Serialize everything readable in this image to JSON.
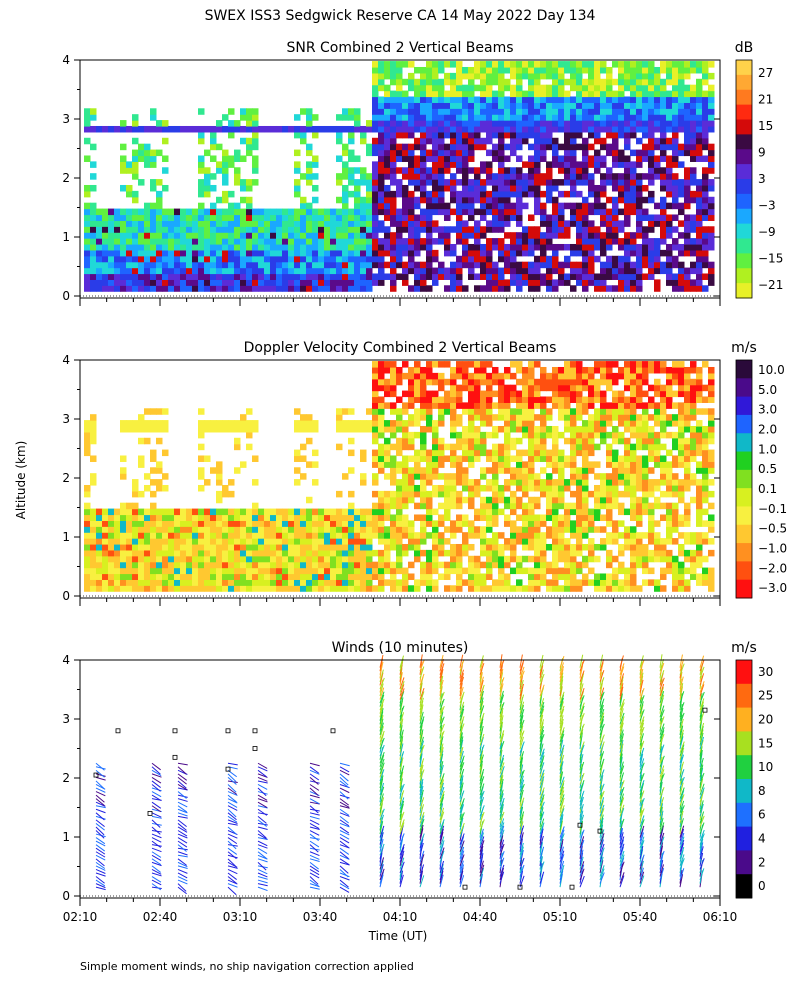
{
  "title": "SWEX ISS3 Sedgwick Reserve CA  14 May 2022 Day 134",
  "footnote": "Simple moment winds, no ship navigation correction applied",
  "ylabel": "Altitude (km)",
  "xlabel": "Time (UT)",
  "x_ticks": [
    "02:10",
    "02:40",
    "03:10",
    "03:40",
    "04:10",
    "04:40",
    "05:10",
    "05:40",
    "06:10"
  ],
  "y_ticks": [
    "0",
    "1",
    "2",
    "3",
    "4"
  ],
  "chart_data": [
    {
      "type": "heatmap",
      "title": "SNR Combined 2 Vertical Beams",
      "ylim": [
        0,
        4
      ],
      "x_range": [
        "02:10",
        "06:10"
      ],
      "colorbar": {
        "unit": "dB",
        "ticks": [
          "27",
          "21",
          "15",
          "9",
          "3",
          "−3",
          "−9",
          "−15",
          "−21"
        ],
        "colors": [
          "#ffd24a",
          "#ffa833",
          "#ff7a1f",
          "#ff2a10",
          "#d40a0a",
          "#3a0a42",
          "#5a0a8a",
          "#5a2cd8",
          "#2a3ce8",
          "#1e64ff",
          "#1aa8ff",
          "#20d8d8",
          "#30e890",
          "#60f040",
          "#b0f020",
          "#e8f028"
        ]
      },
      "description_regions": [
        {
          "x_start": "02:10",
          "x_end": "03:58",
          "alt_low": 0.1,
          "alt_high": 1.5,
          "snr_range": [
            -21,
            3
          ]
        },
        {
          "x_start": "04:00",
          "x_end": "06:10",
          "alt_low": 0.1,
          "alt_high": 3.2,
          "snr_range": [
            -3,
            15
          ]
        },
        {
          "x_start": "04:00",
          "x_end": "06:10",
          "alt_low": 2.6,
          "alt_high": 4.0,
          "snr_range": [
            -21,
            -9
          ]
        }
      ]
    },
    {
      "type": "heatmap",
      "title": "Doppler Velocity Combined 2 Vertical Beams",
      "ylim": [
        0,
        4
      ],
      "x_range": [
        "02:10",
        "06:10"
      ],
      "colorbar": {
        "unit": "m/s",
        "ticks": [
          "10.0",
          "5.0",
          "3.0",
          "2.0",
          "1.0",
          "0.5",
          "0.1",
          "−0.1",
          "−0.5",
          "−1.0",
          "−2.0",
          "−3.0"
        ],
        "colors": [
          "#2a0a3a",
          "#4a0a8a",
          "#3018d8",
          "#1e64ff",
          "#10b8c8",
          "#20d020",
          "#80e020",
          "#d8f020",
          "#f8f040",
          "#ffc830",
          "#ff9020",
          "#ff5010",
          "#ff1010"
        ]
      }
    },
    {
      "type": "scatter",
      "title": "Winds (10 minutes)",
      "ylim": [
        0,
        4
      ],
      "x_range": [
        "02:10",
        "06:10"
      ],
      "colorbar": {
        "unit": "m/s",
        "ticks": [
          "30",
          "25",
          "20",
          "15",
          "10",
          "8",
          "6",
          "4",
          "2",
          "0"
        ],
        "colors": [
          "#ff1010",
          "#ff6a10",
          "#ffb020",
          "#a8e020",
          "#20d040",
          "#10b8c8",
          "#1e70ff",
          "#2020e0",
          "#4a0a8a",
          "#000000"
        ]
      }
    }
  ]
}
